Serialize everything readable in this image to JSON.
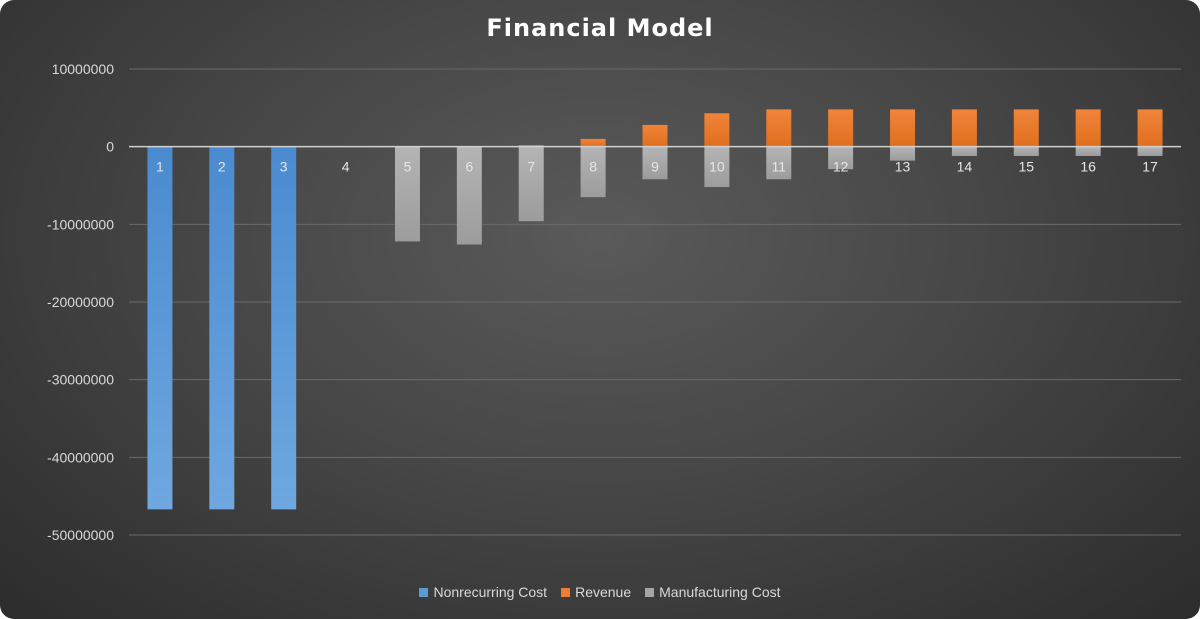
{
  "chart_data": {
    "type": "bar",
    "title": "Financial Model",
    "xlabel": "",
    "ylabel": "",
    "categories": [
      "1",
      "2",
      "3",
      "4",
      "5",
      "6",
      "7",
      "8",
      "9",
      "10",
      "11",
      "12",
      "13",
      "14",
      "15",
      "16",
      "17"
    ],
    "series": [
      {
        "name": "Nonrecurring Cost",
        "color": "#5b9bd5",
        "values": [
          -46700000,
          -46700000,
          -46700000,
          0,
          0,
          0,
          0,
          0,
          0,
          0,
          0,
          0,
          0,
          0,
          0,
          0,
          0
        ]
      },
      {
        "name": "Revenue",
        "color": "#ed7d31",
        "values": [
          0,
          0,
          0,
          0,
          0,
          0,
          200000,
          1000000,
          2800000,
          4300000,
          4800000,
          4800000,
          4800000,
          4800000,
          4800000,
          4800000,
          4800000
        ]
      },
      {
        "name": "Manufacturing Cost",
        "color": "#a5a5a5",
        "values": [
          0,
          0,
          0,
          0,
          -12200000,
          -12600000,
          -9600000,
          -6500000,
          -4200000,
          -5200000,
          -4200000,
          -2900000,
          -1800000,
          -1200000,
          -1200000,
          -1200000,
          -1200000
        ]
      }
    ],
    "ylim": [
      -50000000,
      10000000
    ],
    "yticks": [
      10000000,
      0,
      -10000000,
      -20000000,
      -30000000,
      -40000000,
      -50000000
    ],
    "ytick_labels": [
      "10000000",
      "0",
      "-10000000",
      "-20000000",
      "-30000000",
      "-40000000",
      "-50000000"
    ],
    "grid": true,
    "legend_position": "bottom"
  }
}
